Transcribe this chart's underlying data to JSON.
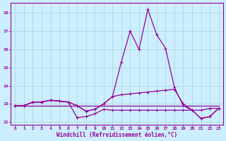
{
  "xlabel": "Windchill (Refroidissement éolien,°C)",
  "background_color": "#cceeff",
  "grid_color": "#aad4d4",
  "line_color": "#990099",
  "xlim_min": -0.5,
  "xlim_max": 23.5,
  "ylim_min": 11.85,
  "ylim_max": 18.55,
  "yticks": [
    12,
    13,
    14,
    15,
    16,
    17,
    18
  ],
  "xticks": [
    0,
    1,
    2,
    3,
    4,
    5,
    6,
    7,
    8,
    9,
    10,
    11,
    12,
    13,
    14,
    15,
    16,
    17,
    18,
    19,
    20,
    21,
    22,
    23
  ],
  "hours": [
    0,
    1,
    2,
    3,
    4,
    5,
    6,
    7,
    8,
    9,
    10,
    11,
    12,
    13,
    14,
    15,
    16,
    17,
    18,
    19,
    20,
    21,
    22,
    23
  ],
  "spike_line": [
    12.9,
    12.9,
    13.1,
    13.1,
    13.2,
    13.15,
    13.1,
    12.9,
    12.6,
    12.7,
    13.0,
    13.4,
    15.3,
    17.0,
    16.0,
    18.2,
    16.8,
    16.05,
    13.9,
    12.9,
    12.65,
    12.2,
    12.3,
    12.75
  ],
  "upper_line": [
    12.9,
    12.9,
    13.1,
    13.1,
    13.2,
    13.15,
    13.1,
    12.9,
    12.6,
    12.7,
    13.0,
    13.4,
    13.5,
    13.55,
    13.6,
    13.65,
    13.7,
    13.75,
    13.8,
    13.0,
    12.65,
    12.65,
    12.75,
    12.75
  ],
  "flat_line": [
    12.9,
    12.9,
    12.9,
    12.9,
    12.9,
    12.9,
    12.9,
    12.9,
    12.9,
    12.9,
    12.9,
    12.9,
    12.9,
    12.9,
    12.9,
    12.9,
    12.9,
    12.9,
    12.9,
    12.9,
    12.9,
    12.9,
    12.9,
    12.9
  ],
  "dip_line": [
    12.9,
    12.9,
    13.1,
    13.1,
    13.2,
    13.15,
    13.1,
    12.25,
    12.3,
    12.45,
    12.7,
    12.65,
    12.65,
    12.65,
    12.65,
    12.65,
    12.65,
    12.65,
    12.65,
    12.65,
    12.65,
    12.2,
    12.3,
    12.75
  ]
}
